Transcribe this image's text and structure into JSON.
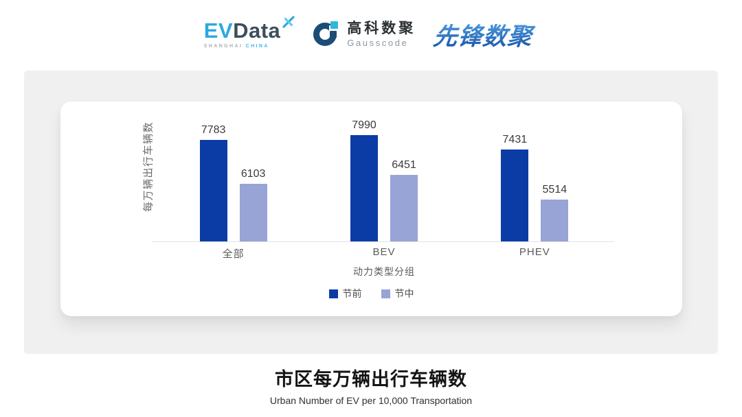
{
  "header": {
    "evdata": {
      "ev": "EV",
      "data": "Data",
      "sub_left": "SHANGHAI",
      "sub_right": "CHINA"
    },
    "gausscode": {
      "cn": "高科数聚",
      "en": "Gausscode"
    },
    "xianfeng": {
      "text": "先锋数聚"
    }
  },
  "chart_data": {
    "type": "bar",
    "categories": [
      "全部",
      "BEV",
      "PHEV"
    ],
    "series": [
      {
        "name": "节前",
        "color": "#0b3ca6",
        "values": [
          7783,
          7990,
          7431
        ]
      },
      {
        "name": "节中",
        "color": "#98a3d6",
        "values": [
          6103,
          6451,
          5514
        ]
      }
    ],
    "title": "市区每万辆出行车辆数",
    "xlabel": "动力类型分组",
    "ylabel": "每万辆出行车辆数",
    "ylim": [
      3900,
      8400
    ],
    "grid": false,
    "legend_position": "bottom",
    "value_labels": true
  },
  "footer": {
    "title": "市区每万辆出行车辆数",
    "subtitle": "Urban Number of EV per 10,000 Transportation"
  },
  "colors": {
    "bar_primary": "#0b3ca6",
    "bar_secondary": "#98a3d6",
    "panel_bg": "#f0f0f1",
    "card_bg": "#ffffff",
    "axis_line": "#e2e2e2",
    "evdata_blue": "#2aa9e0",
    "evdata_dark": "#3d4e5c",
    "gausscode_navy": "#1c4d76",
    "gausscode_cyan": "#2fb9d6",
    "xianfeng_blue": "#2e6fc2",
    "title_text": "#141414",
    "label_text": "#5a5a5a"
  }
}
